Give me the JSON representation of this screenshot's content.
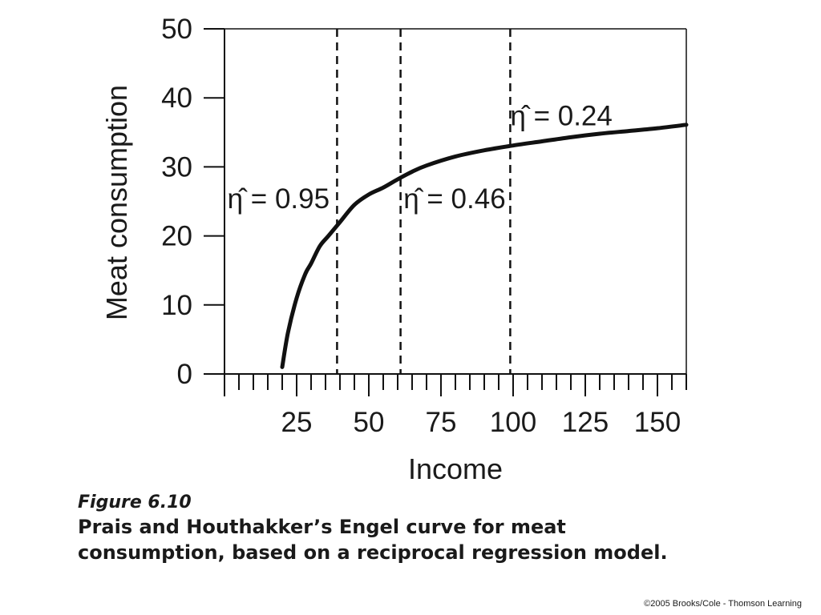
{
  "chart_data": {
    "type": "line",
    "title": "",
    "xlabel": "Income",
    "ylabel": "Meat consumption",
    "xlim": [
      0,
      160
    ],
    "ylim": [
      0,
      50
    ],
    "x_ticks": [
      25,
      50,
      75,
      100,
      125,
      150
    ],
    "y_ticks": [
      0,
      10,
      20,
      30,
      40,
      50
    ],
    "x_minor_step": 5,
    "grid": false,
    "series": [
      {
        "x": [
          20,
          22,
          25,
          28,
          30,
          33,
          36,
          40,
          45,
          50,
          55,
          60,
          65,
          70,
          80,
          90,
          100,
          110,
          120,
          130,
          140,
          150,
          160
        ],
        "y": [
          1,
          6,
          11,
          14.5,
          16,
          18.5,
          20,
          22,
          24.5,
          26,
          27,
          28.2,
          29.3,
          30.2,
          31.5,
          32.4,
          33.1,
          33.7,
          34.3,
          34.8,
          35.2,
          35.6,
          36.1
        ]
      }
    ],
    "reference_lines": [
      {
        "axis": "x",
        "value": 39,
        "style": "dashed"
      },
      {
        "axis": "x",
        "value": 61,
        "style": "dashed"
      },
      {
        "axis": "x",
        "value": 99,
        "style": "dashed"
      }
    ],
    "annotations": [
      {
        "text": "η̂ = 0.95",
        "x": 1,
        "y": 24
      },
      {
        "text": "η̂ = 0.46",
        "x": 62,
        "y": 24
      },
      {
        "text": "η̂ = 0.24",
        "x": 99,
        "y": 36
      }
    ]
  },
  "caption": {
    "figure_label": "Figure 6.10",
    "line1": "Prais and Houthakker’s Engel curve for meat",
    "line2": "consumption, based on a reciprocal regression model."
  },
  "copyright": "©2005 Brooks/Cole - Thomson Learning"
}
